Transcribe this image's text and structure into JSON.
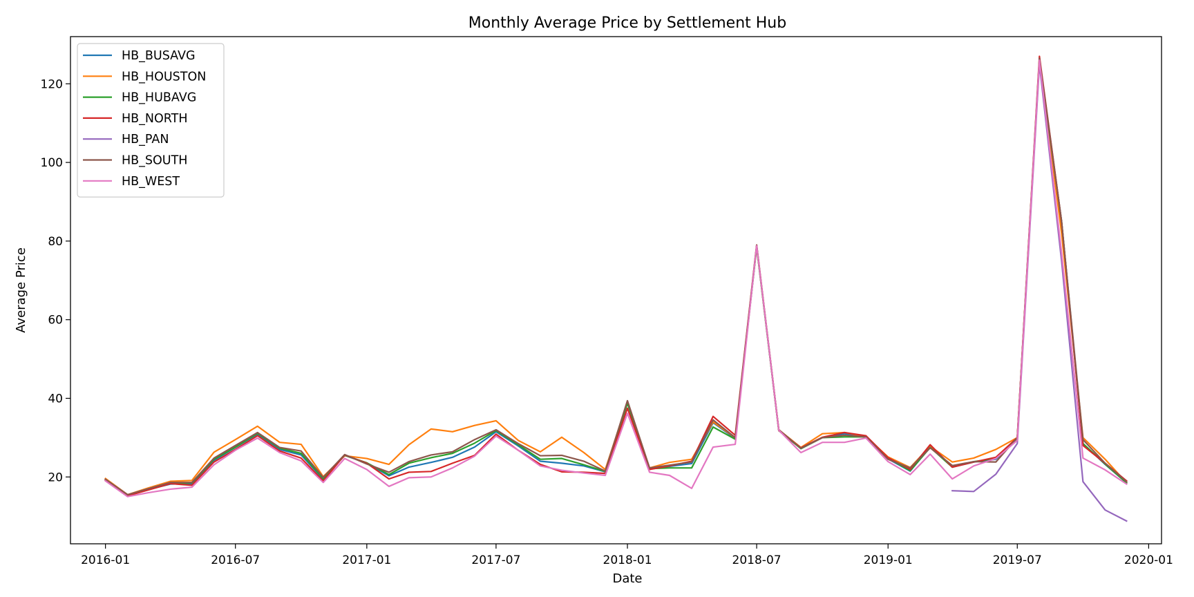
{
  "chart_data": {
    "type": "line",
    "title": "Monthly Average Price by Settlement Hub",
    "xlabel": "Date",
    "ylabel": "Average Price",
    "x_range": [
      "2015-11-13",
      "2020-01-19"
    ],
    "ylim": [
      3,
      132
    ],
    "x_ticks": [
      "2016-01-01",
      "2016-07-01",
      "2017-01-01",
      "2017-07-01",
      "2018-01-01",
      "2018-07-01",
      "2019-01-01",
      "2019-07-01",
      "2020-01-01"
    ],
    "x_tick_labels": [
      "2016-01",
      "2016-07",
      "2017-01",
      "2017-07",
      "2018-01",
      "2018-07",
      "2019-01",
      "2019-07",
      "2020-01"
    ],
    "y_ticks": [
      20,
      40,
      60,
      80,
      100,
      120
    ],
    "grid": false,
    "legend_position": "upper-left",
    "dates": [
      "2016-01-01",
      "2016-02-01",
      "2016-03-01",
      "2016-04-01",
      "2016-05-01",
      "2016-06-01",
      "2016-07-01",
      "2016-08-01",
      "2016-09-01",
      "2016-10-01",
      "2016-11-01",
      "2016-12-01",
      "2017-01-01",
      "2017-02-01",
      "2017-03-01",
      "2017-04-01",
      "2017-05-01",
      "2017-06-01",
      "2017-07-01",
      "2017-08-01",
      "2017-09-01",
      "2017-10-01",
      "2017-11-01",
      "2017-12-01",
      "2018-01-01",
      "2018-02-01",
      "2018-03-01",
      "2018-04-01",
      "2018-05-01",
      "2018-06-01",
      "2018-07-01",
      "2018-08-01",
      "2018-09-01",
      "2018-10-01",
      "2018-11-01",
      "2018-12-01",
      "2019-01-01",
      "2019-02-01",
      "2019-03-01",
      "2019-04-01",
      "2019-05-01",
      "2019-06-01",
      "2019-07-01",
      "2019-08-01",
      "2019-09-01",
      "2019-10-01",
      "2019-11-01",
      "2019-12-01"
    ],
    "series": [
      {
        "name": "HB_BUSAVG",
        "color": "#1f77b4",
        "values": [
          19.3,
          15.3,
          16.8,
          18.2,
          18.3,
          24.2,
          27.5,
          30.9,
          27,
          25.6,
          19.4,
          25.5,
          23.5,
          20.3,
          22.5,
          23.7,
          25,
          27.6,
          31.5,
          27.9,
          24,
          23.5,
          22.8,
          21.3,
          38.8,
          22,
          22.7,
          23.4,
          33.8,
          29.8,
          78.5,
          31.8,
          27.2,
          30,
          31,
          30.2,
          24.6,
          21.5,
          27.6,
          22.5,
          23.8,
          24.5,
          29.5,
          126,
          85,
          28.5,
          23.2,
          18.5
        ]
      },
      {
        "name": "HB_HOUSTON",
        "color": "#ff7f0e",
        "values": [
          19.6,
          15.5,
          17.2,
          18.9,
          19.1,
          26.3,
          29.5,
          32.9,
          28.8,
          28.3,
          20.1,
          25.4,
          24.7,
          23.2,
          28.2,
          32.2,
          31.5,
          33.1,
          34.3,
          29.3,
          26.4,
          30.1,
          26.2,
          21.9,
          39,
          22.3,
          23.7,
          24.5,
          34,
          30,
          78.5,
          32,
          27.5,
          31,
          31.3,
          30.3,
          25.1,
          22.4,
          27.8,
          23.8,
          24.8,
          27,
          30,
          126,
          82,
          30,
          24.5,
          18.5
        ]
      },
      {
        "name": "HB_HUBAVG",
        "color": "#2ca02c",
        "values": [
          19.3,
          15.4,
          16.9,
          18.3,
          18.5,
          24.5,
          27.6,
          31.1,
          27.3,
          26,
          19.6,
          25.5,
          23.6,
          20.6,
          23.5,
          24.9,
          26,
          28.6,
          31.8,
          28.2,
          24.5,
          24.7,
          23.1,
          21.4,
          38.8,
          22.1,
          22.3,
          22.3,
          32.7,
          29.6,
          78.5,
          31.8,
          27.2,
          30,
          30.2,
          30.2,
          24.8,
          21.6,
          27.5,
          22.5,
          23.9,
          24.7,
          29.8,
          126,
          85,
          28.5,
          23.3,
          18.5
        ]
      },
      {
        "name": "HB_NORTH",
        "color": "#d62728",
        "values": [
          19.2,
          15.2,
          16.7,
          18.3,
          17.9,
          23.8,
          27,
          30.5,
          26.6,
          24.8,
          19,
          25.6,
          23.5,
          19.5,
          21.2,
          21.4,
          23.5,
          25.5,
          30.9,
          26.8,
          23.2,
          21.3,
          21.2,
          20.9,
          37.5,
          21.9,
          22.8,
          24,
          35.4,
          30.6,
          79,
          31.8,
          27.4,
          30.1,
          31.3,
          30.5,
          24.9,
          21.9,
          28.2,
          22.5,
          23.8,
          25,
          30,
          127,
          85,
          28,
          23.5,
          19
        ]
      },
      {
        "name": "HB_PAN",
        "color": "#9467bd",
        "values": [
          null,
          null,
          null,
          null,
          null,
          null,
          null,
          null,
          null,
          null,
          null,
          null,
          null,
          null,
          null,
          null,
          null,
          null,
          null,
          null,
          null,
          null,
          null,
          null,
          null,
          null,
          null,
          null,
          null,
          null,
          null,
          null,
          null,
          null,
          null,
          null,
          null,
          null,
          null,
          16.5,
          16.3,
          20.7,
          28.5,
          125,
          75,
          18.8,
          11.6,
          8.8
        ]
      },
      {
        "name": "HB_SOUTH",
        "color": "#8c564b",
        "values": [
          19.4,
          15.5,
          17,
          18.6,
          18.6,
          24.8,
          28,
          31.3,
          27.5,
          26.6,
          19.9,
          25.7,
          23.3,
          21.2,
          23.9,
          25.6,
          26.4,
          29.5,
          32,
          28.5,
          25.4,
          25.5,
          24,
          21.5,
          39.4,
          22.3,
          23,
          23.8,
          34.5,
          30,
          79,
          32,
          27.3,
          30,
          30.6,
          30.2,
          24.5,
          22.3,
          27.4,
          22.9,
          23.9,
          23.8,
          30,
          126.5,
          85,
          29.5,
          23.5,
          18.8
        ]
      },
      {
        "name": "HB_WEST",
        "color": "#e377c2",
        "values": [
          19,
          15,
          16,
          16.9,
          17.4,
          23.1,
          26.8,
          29.9,
          26.2,
          24.1,
          18.6,
          24.7,
          21.9,
          17.6,
          19.8,
          20,
          22.3,
          25.3,
          30.4,
          26.8,
          22.8,
          21.7,
          21,
          20.4,
          36.2,
          21.2,
          20.4,
          17.1,
          27.6,
          28.3,
          78.8,
          31.9,
          26.2,
          28.8,
          28.8,
          29.9,
          23.9,
          20.6,
          25.8,
          19.5,
          22.8,
          24.7,
          29.3,
          126,
          77,
          24.8,
          21.8,
          18.2
        ]
      }
    ]
  }
}
